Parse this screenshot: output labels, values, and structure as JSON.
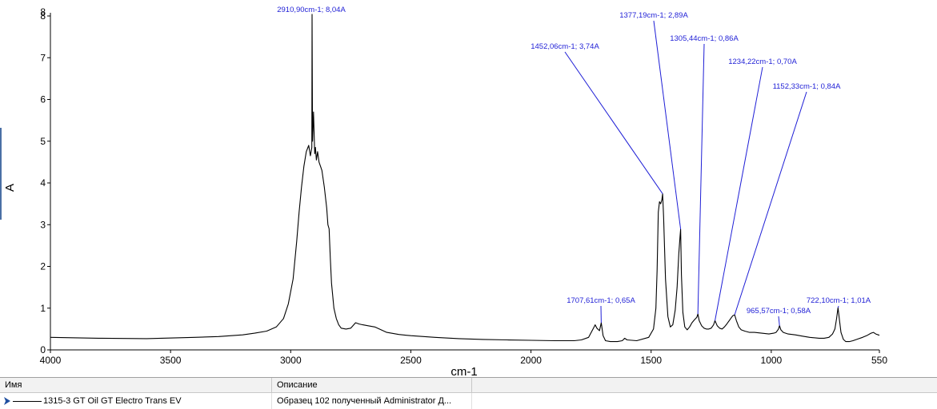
{
  "chart_data": {
    "type": "line",
    "xlabel": "cm-1",
    "ylabel": "A",
    "xlim": [
      4000,
      550
    ],
    "ylim": [
      0,
      8
    ],
    "x_reversed": true,
    "grid": false,
    "xticks": [
      4000,
      3500,
      3000,
      2500,
      2000,
      1500,
      1000,
      550
    ],
    "yticks": [
      0,
      1,
      2,
      3,
      4,
      5,
      6,
      7,
      8
    ],
    "series": [
      {
        "name": "1315-3 GT Oil GT Electro Trans EV",
        "color": "#000000",
        "x": [
          4000,
          3800,
          3600,
          3400,
          3300,
          3200,
          3150,
          3100,
          3060,
          3030,
          3010,
          2990,
          2975,
          2965,
          2955,
          2945,
          2935,
          2925,
          2918,
          2912,
          2910.9,
          2909,
          2905,
          2900,
          2897,
          2893,
          2888,
          2882,
          2876,
          2870,
          2860,
          2850,
          2845,
          2840,
          2835,
          2830,
          2820,
          2810,
          2800,
          2790,
          2770,
          2750,
          2730,
          2715,
          2700,
          2680,
          2650,
          2600,
          2550,
          2500,
          2400,
          2300,
          2200,
          2100,
          2000,
          1900,
          1820,
          1790,
          1760,
          1740,
          1733,
          1726,
          1715,
          1707.6,
          1700,
          1690,
          1670,
          1640,
          1620,
          1610,
          1600,
          1560,
          1510,
          1490,
          1480,
          1475,
          1470,
          1465,
          1460,
          1455,
          1452.1,
          1448,
          1440,
          1430,
          1420,
          1410,
          1400,
          1392,
          1385,
          1380,
          1377.2,
          1374,
          1368,
          1360,
          1350,
          1340,
          1330,
          1320,
          1310,
          1305.4,
          1300,
          1290,
          1280,
          1270,
          1260,
          1250,
          1240,
          1234.2,
          1225,
          1215,
          1205,
          1195,
          1185,
          1175,
          1165,
          1160,
          1152.3,
          1145,
          1135,
          1125,
          1110,
          1090,
          1070,
          1040,
          1010,
          990,
          980,
          970,
          965.6,
          960,
          950,
          930,
          900,
          870,
          840,
          800,
          780,
          760,
          745,
          735,
          728,
          722.1,
          716,
          710,
          700,
          690,
          675,
          660,
          640,
          620,
          600,
          585,
          575,
          565,
          550
        ],
        "y": [
          0.3,
          0.28,
          0.27,
          0.3,
          0.32,
          0.36,
          0.4,
          0.45,
          0.55,
          0.75,
          1.1,
          1.7,
          2.6,
          3.3,
          3.9,
          4.4,
          4.75,
          4.9,
          4.65,
          4.85,
          8.04,
          5.0,
          5.7,
          4.7,
          4.85,
          4.55,
          4.75,
          4.5,
          4.4,
          4.3,
          3.9,
          3.4,
          3.0,
          2.9,
          2.2,
          1.6,
          1.0,
          0.75,
          0.6,
          0.52,
          0.5,
          0.52,
          0.65,
          0.62,
          0.6,
          0.58,
          0.55,
          0.42,
          0.37,
          0.34,
          0.3,
          0.27,
          0.25,
          0.24,
          0.23,
          0.22,
          0.22,
          0.24,
          0.3,
          0.52,
          0.6,
          0.52,
          0.46,
          0.65,
          0.34,
          0.22,
          0.2,
          0.2,
          0.22,
          0.28,
          0.24,
          0.22,
          0.3,
          0.5,
          1.0,
          1.9,
          3.3,
          3.55,
          3.5,
          3.6,
          3.74,
          3.2,
          1.7,
          0.8,
          0.55,
          0.6,
          0.95,
          1.5,
          2.3,
          2.7,
          2.89,
          1.8,
          0.9,
          0.55,
          0.48,
          0.55,
          0.65,
          0.72,
          0.78,
          0.86,
          0.7,
          0.58,
          0.52,
          0.5,
          0.5,
          0.52,
          0.6,
          0.7,
          0.58,
          0.52,
          0.5,
          0.55,
          0.62,
          0.7,
          0.78,
          0.82,
          0.84,
          0.7,
          0.55,
          0.48,
          0.45,
          0.42,
          0.42,
          0.4,
          0.38,
          0.4,
          0.42,
          0.5,
          0.58,
          0.48,
          0.42,
          0.38,
          0.36,
          0.33,
          0.3,
          0.28,
          0.28,
          0.3,
          0.38,
          0.5,
          0.75,
          1.01,
          0.7,
          0.42,
          0.25,
          0.2,
          0.2,
          0.22,
          0.26,
          0.3,
          0.35,
          0.4,
          0.42,
          0.38,
          0.35
        ]
      }
    ],
    "annotations": [
      {
        "text": "2910,90cm-1; 8,04A",
        "x": 2910.9,
        "y": 8.04
      },
      {
        "text": "1452,06cm-1; 3,74A",
        "x": 1452.06,
        "y": 3.74
      },
      {
        "text": "1377,19cm-1; 2,89A",
        "x": 1377.19,
        "y": 2.89
      },
      {
        "text": "1305,44cm-1; 0,86A",
        "x": 1305.44,
        "y": 0.86
      },
      {
        "text": "1234,22cm-1; 0,70A",
        "x": 1234.22,
        "y": 0.7
      },
      {
        "text": "1152,33cm-1; 0,84A",
        "x": 1152.33,
        "y": 0.84
      },
      {
        "text": "1707,61cm-1; 0,65A",
        "x": 1707.61,
        "y": 0.65
      },
      {
        "text": "965,57cm-1; 0,58A",
        "x": 965.57,
        "y": 0.58
      },
      {
        "text": "722,10cm-1; 1,01A",
        "x": 722.1,
        "y": 1.01
      }
    ],
    "label_color": "#1f1fd6",
    "leader_color": "#1f1fd6"
  },
  "table": {
    "headers": {
      "name": "Имя",
      "description": "Описание",
      "extra": ""
    },
    "rows": [
      {
        "name": "1315-3 GT Oil GT Electro Trans EV",
        "description": "Образец 102 полученный Administrator Д..."
      }
    ]
  }
}
